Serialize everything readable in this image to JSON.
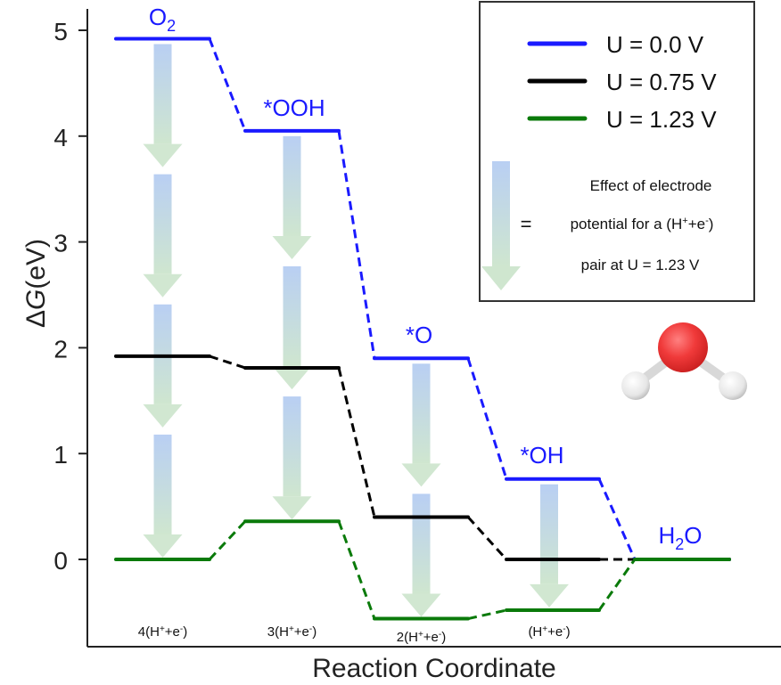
{
  "chart_data": {
    "type": "line",
    "title": "",
    "xlabel": "Reaction Coordinate",
    "ylabel": {
      "prefix": "Δ",
      "italic": "G",
      "suffix": "(eV)"
    },
    "ylim": [
      -0.82,
      5.2
    ],
    "yticks": [
      0,
      1,
      2,
      3,
      4,
      5
    ],
    "grid": false,
    "legend_position": "top-right",
    "steps": [
      {
        "species": {
          "base": "O",
          "sub": "2"
        },
        "electrons": {
          "pre": "4(H",
          "sup1": "+",
          "mid": "+e",
          "sup2": "-",
          "post": ")"
        }
      },
      {
        "species": {
          "base": "*OOH",
          "sub": ""
        },
        "electrons": {
          "pre": "3(H",
          "sup1": "+",
          "mid": "+e",
          "sup2": "-",
          "post": ")"
        }
      },
      {
        "species": {
          "base": "*O",
          "sub": ""
        },
        "electrons": {
          "pre": "2(H",
          "sup1": "+",
          "mid": "+e",
          "sup2": "-",
          "post": ")"
        }
      },
      {
        "species": {
          "base": "*OH",
          "sub": ""
        },
        "electrons": {
          "pre": "(H",
          "sup1": "+",
          "mid": "+e",
          "sup2": "-",
          "post": ")"
        }
      },
      {
        "species": {
          "base": "H",
          "sub": "2",
          "tail": "O"
        },
        "electrons": null
      }
    ],
    "series": [
      {
        "name": "U = 0.0 V",
        "color": "#1a1aff",
        "values": [
          4.92,
          4.05,
          1.9,
          0.76,
          0.0
        ]
      },
      {
        "name": "U = 0.75 V",
        "color": "#000000",
        "values": [
          1.92,
          1.81,
          0.4,
          0.0,
          0.0
        ]
      },
      {
        "name": "U = 1.23 V",
        "color": "#0a7a0a",
        "values": [
          0.0,
          0.36,
          -0.56,
          -0.48,
          0.0
        ]
      }
    ],
    "arrow_step_eV": 1.23,
    "legend_note": {
      "symbol": "=",
      "lines": [
        "Effect of electrode",
        "potential for a (H",
        "pair at U = 1.23 V"
      ],
      "line2_sup1": "+",
      "line2_mid": "+e",
      "line2_sup2": "-",
      "line2_post": ")"
    }
  }
}
